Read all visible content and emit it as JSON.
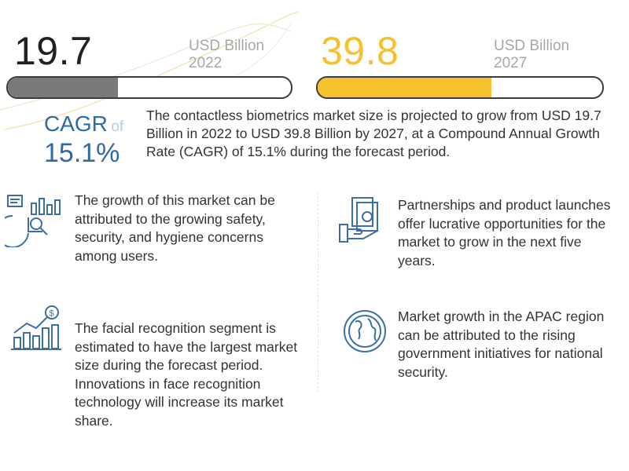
{
  "stats": {
    "left": {
      "value": "19.7",
      "unit": "USD Billion",
      "year": "2022",
      "fill_fraction": 0.39,
      "color": "#7a7a7a"
    },
    "right": {
      "value": "39.8",
      "unit": "USD Billion",
      "year": "2027",
      "fill_fraction": 0.61,
      "color": "#f5c12e"
    }
  },
  "cagr": {
    "label": "CAGR",
    "of": "of",
    "value": "15.1%",
    "summary": "The contactless biometrics market size is projected to grow from USD 19.7 Billion in 2022 to USD 39.8 Billion by 2027, at a Compound Annual Growth Rate (CAGR) of 15.1% during the forecast period."
  },
  "points": [
    {
      "icon": "chart-analysis-icon",
      "text": "The growth of this market can be attributed to the growing safety, security, and hygiene concerns among users."
    },
    {
      "icon": "money-hand-icon",
      "text": "Partnerships and product launches offer lucrative opportunities for the market to grow in the next five years."
    },
    {
      "icon": "bar-growth-dollar-icon",
      "text": "The facial recognition segment is estimated to have the largest market size during the forecast period. Innovations in face recognition technology will increase its market share."
    },
    {
      "icon": "globe-icon",
      "text": "Market growth in the APAC region can be attributed to the rising government initiatives for national security."
    }
  ],
  "colors": {
    "accent_blue": "#2f6aa8",
    "icon_blue": "#3b6fa5",
    "yellow": "#f5c12e",
    "gray_fill": "#7a7a7a"
  }
}
